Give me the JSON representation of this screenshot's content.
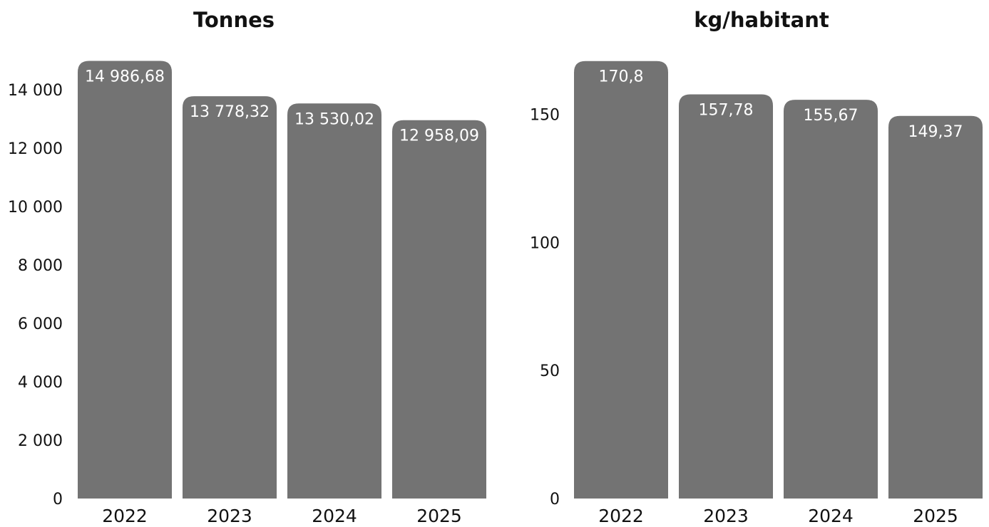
{
  "colors": {
    "bar": "#737373",
    "text": "#111111",
    "data_label": "#ffffff",
    "background": "#ffffff"
  },
  "chart_data": [
    {
      "type": "bar",
      "title": "Tonnes",
      "categories": [
        "2022",
        "2023",
        "2024",
        "2025"
      ],
      "values": [
        14986.68,
        13778.32,
        13530.02,
        12958.09
      ],
      "data_labels": [
        "14 986,68",
        "13 778,32",
        "13 530,02",
        "12 958,09"
      ],
      "yticks": [
        0,
        2000,
        4000,
        6000,
        8000,
        10000,
        12000,
        14000
      ],
      "ytick_labels": [
        "0",
        "2 000",
        "4 000",
        "6 000",
        "8 000",
        "10 000",
        "12 000",
        "14 000"
      ],
      "ylim": [
        0,
        15000
      ],
      "xlabel": "",
      "ylabel": "",
      "grid": false,
      "legend": "none"
    },
    {
      "type": "bar",
      "title": "kg/habitant",
      "categories": [
        "2022",
        "2023",
        "2024",
        "2025"
      ],
      "values": [
        170.8,
        157.78,
        155.67,
        149.37
      ],
      "data_labels": [
        "170,8",
        "157,78",
        "155,67",
        "149,37"
      ],
      "yticks": [
        0,
        50,
        100,
        150
      ],
      "ytick_labels": [
        "0",
        "50",
        "100",
        "150"
      ],
      "ylim": [
        0,
        171
      ],
      "xlabel": "",
      "ylabel": "",
      "grid": false,
      "legend": "none"
    }
  ]
}
